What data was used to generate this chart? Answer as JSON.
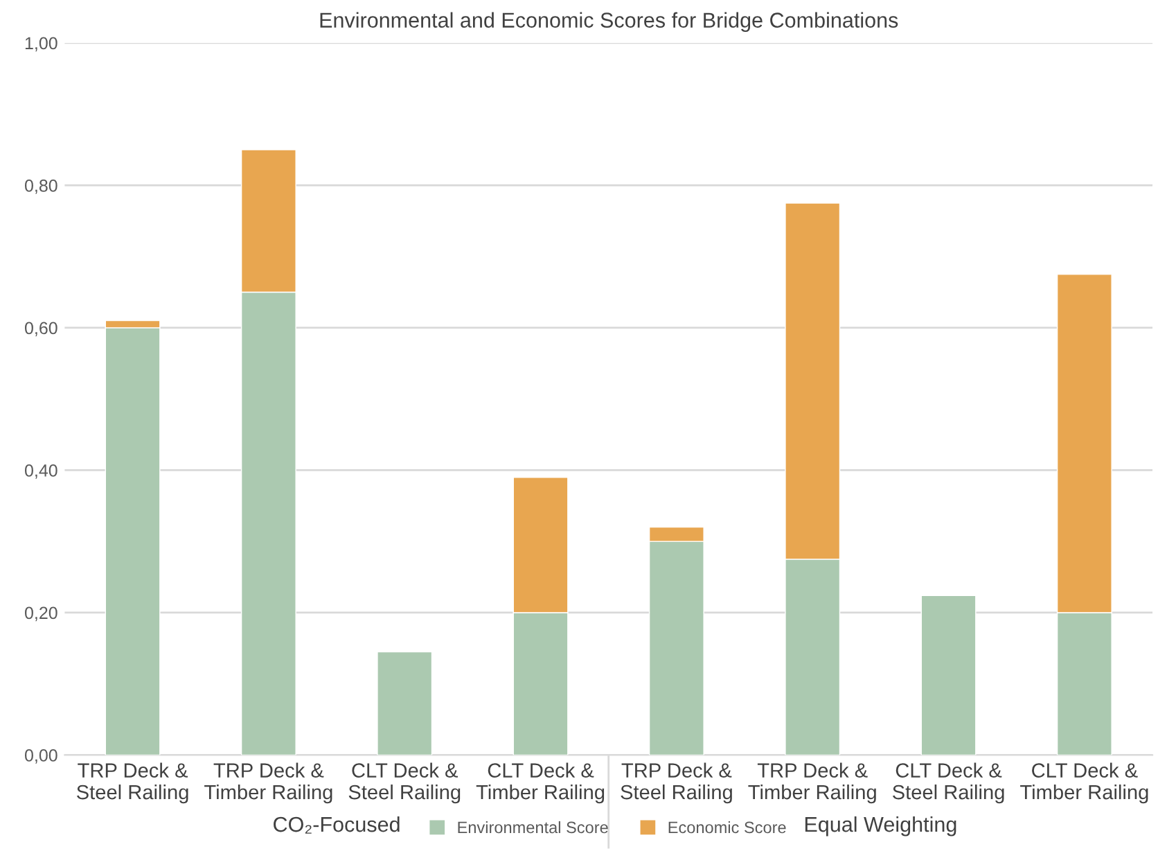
{
  "chart_data": {
    "type": "bar",
    "stacked": true,
    "title": "Environmental and Economic Scores for Bridge Combinations",
    "categories": [
      "TRP Deck & Steel Railing",
      "TRP Deck & Timber Railing",
      "CLT Deck & Steel Railing",
      "CLT Deck & Timber Railing",
      "TRP Deck & Steel Railing",
      "TRP Deck & Timber Railing",
      "CLT Deck & Steel Railing",
      "CLT Deck & Timber Railing"
    ],
    "series": [
      {
        "name": "Environmental Score",
        "color": "#abc9b0",
        "values": [
          0.6,
          0.65,
          0.145,
          0.2,
          0.3,
          0.275,
          0.224,
          0.2
        ]
      },
      {
        "name": "Economic Score",
        "color": "#e8a650",
        "values": [
          0.01,
          0.2,
          null,
          0.19,
          0.02,
          0.5,
          null,
          0.475
        ]
      }
    ],
    "ylim": [
      0,
      1
    ],
    "yticks": [
      {
        "value": 0,
        "label": "0,00"
      },
      {
        "value": 0.2,
        "label": "0,20"
      },
      {
        "value": 0.4,
        "label": "0,40"
      },
      {
        "value": 0.6,
        "label": "0,60"
      },
      {
        "value": 0.8,
        "label": "0,80"
      },
      {
        "value": 1,
        "label": "1,00"
      }
    ],
    "grid": "y",
    "legend": "bottom",
    "annotations": [
      "CO₂-Focused",
      "Equal Weighting"
    ]
  }
}
